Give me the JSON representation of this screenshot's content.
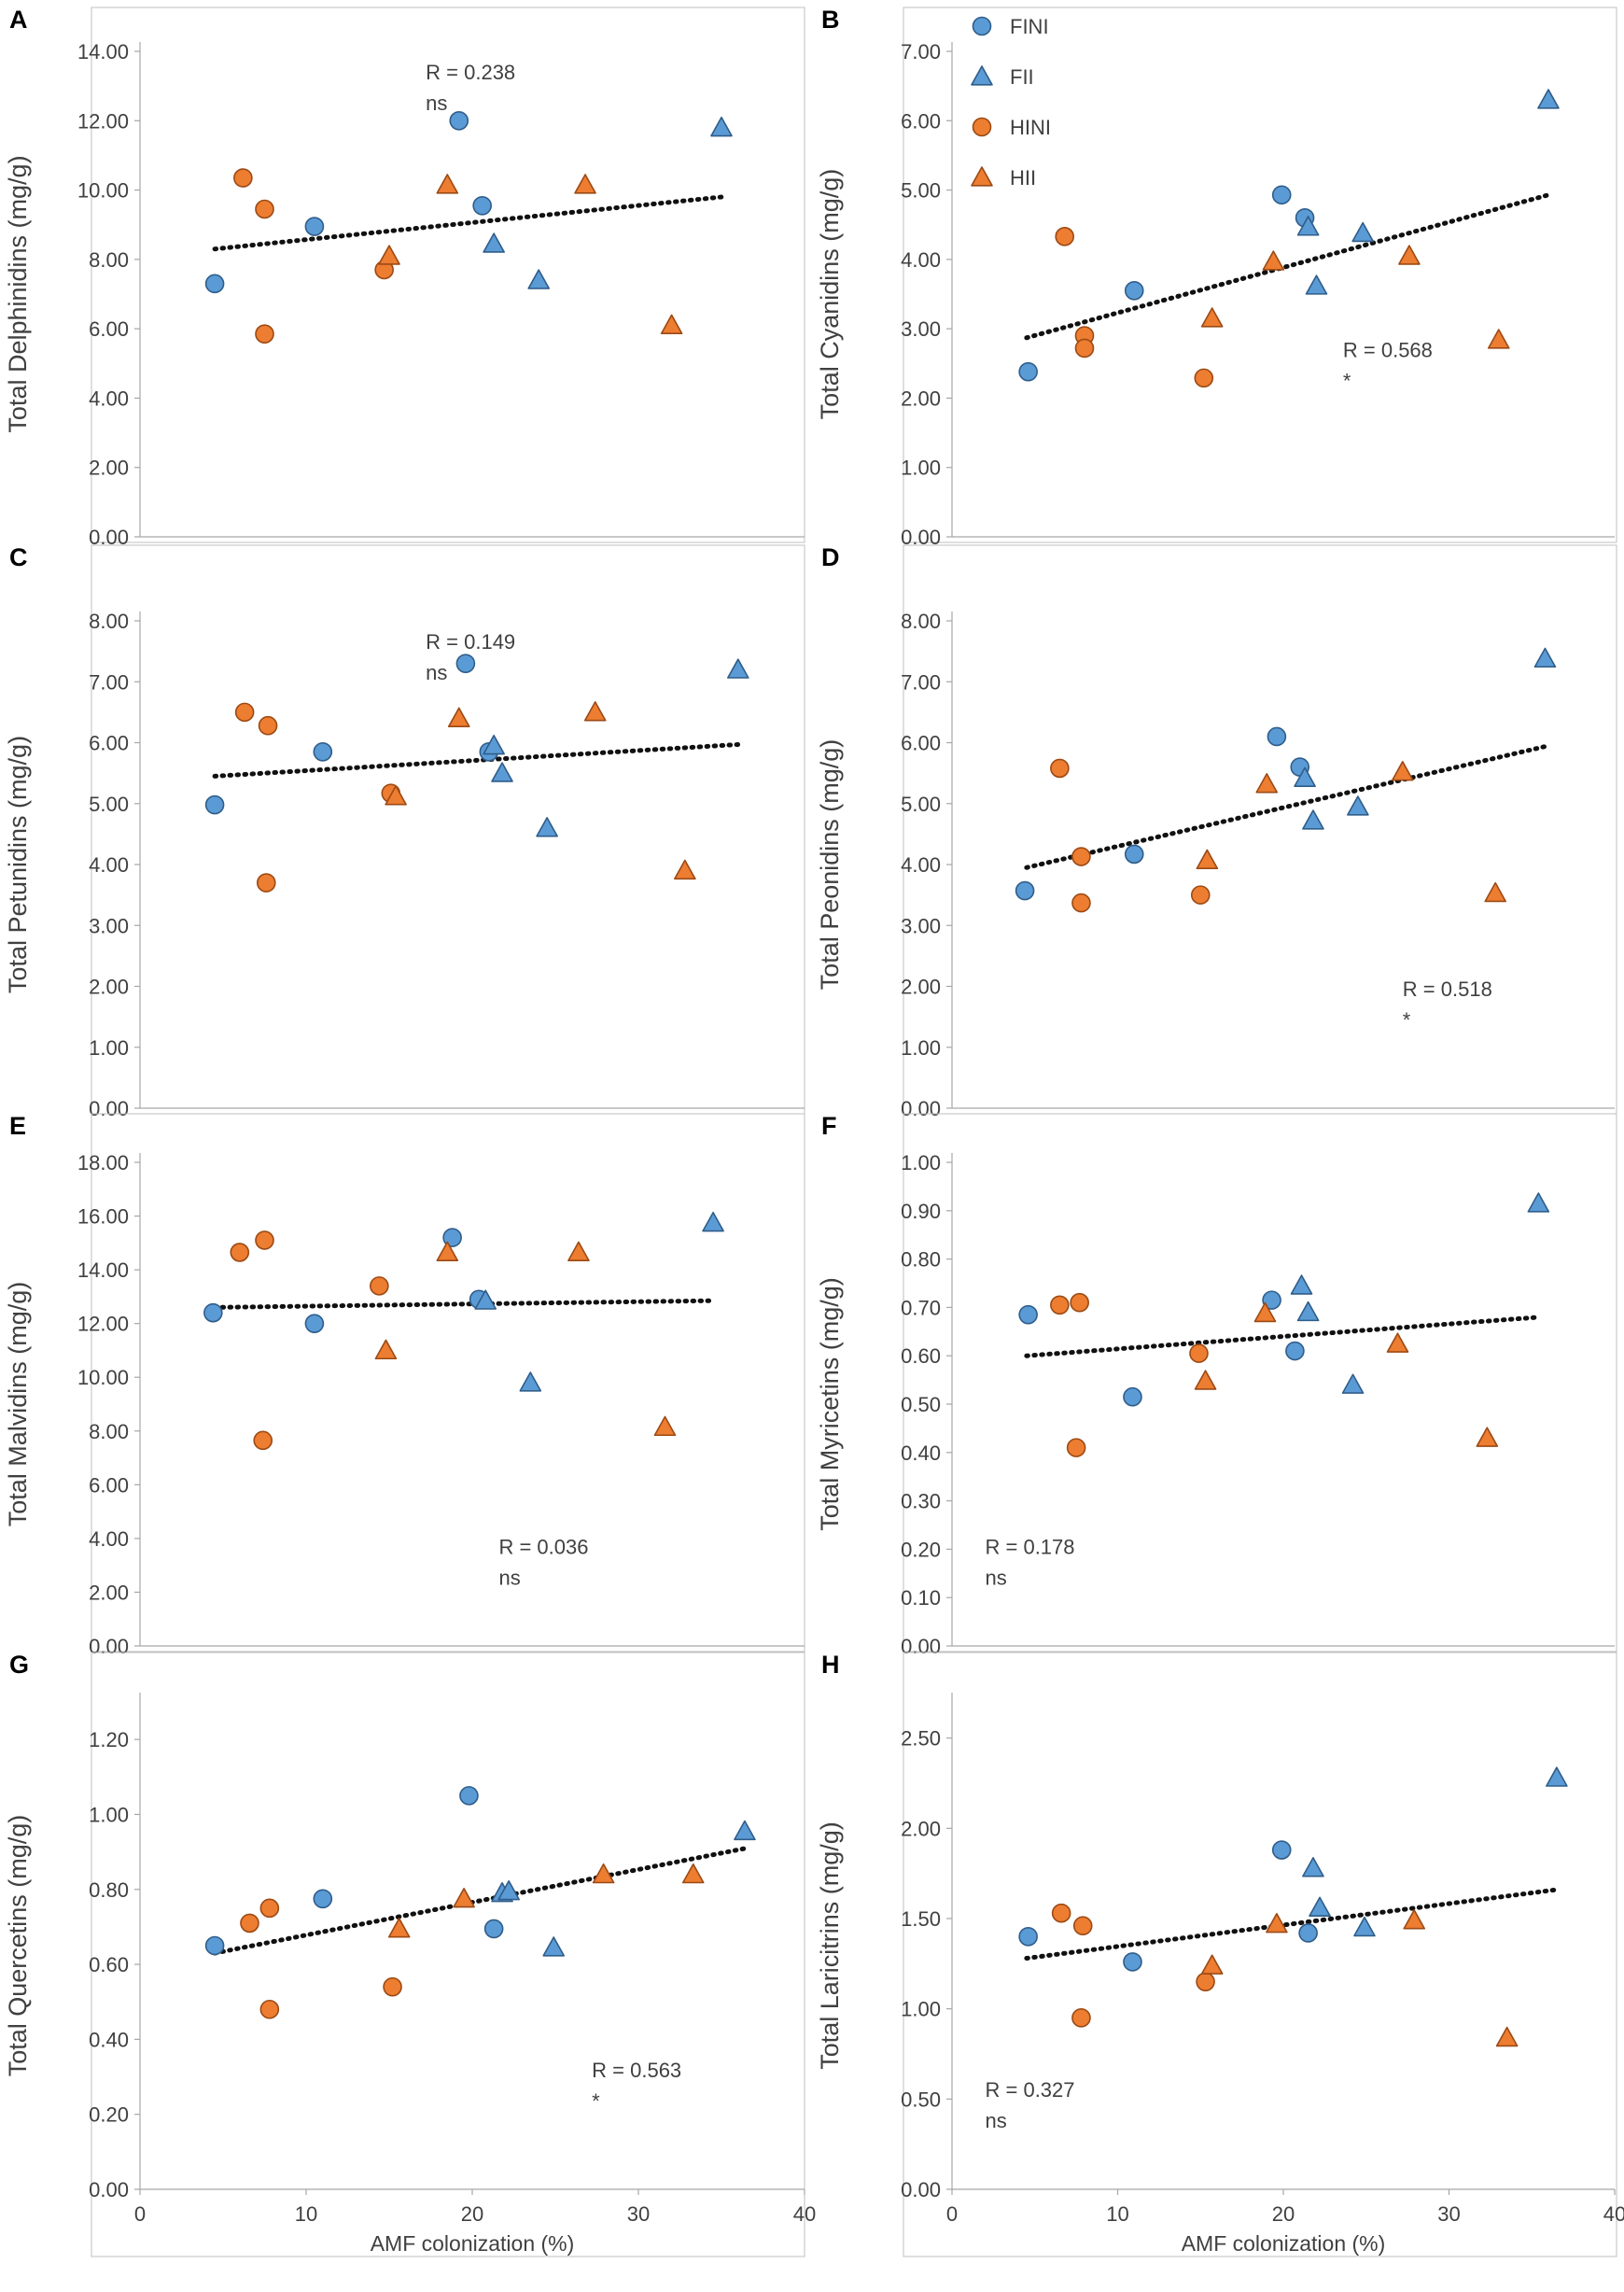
{
  "colors": {
    "FI": "#5b9bd5",
    "FIStroke": "#2f5d8a",
    "HI": "#ed7d31",
    "HIStroke": "#9c4a14"
  },
  "legend": [
    {
      "label": "FINI",
      "shape": "circle",
      "color": "FI"
    },
    {
      "label": "FII",
      "shape": "triangle",
      "color": "FI"
    },
    {
      "label": "HINI",
      "shape": "circle",
      "color": "HI"
    },
    {
      "label": "HII",
      "shape": "triangle",
      "color": "HI"
    }
  ],
  "chart_data": [
    {
      "panel": "A",
      "type": "scatter",
      "ylabel": "Total Delphinidins (mg/g)",
      "xlabel": "",
      "ylim": [
        0,
        14
      ],
      "ystep": 2,
      "xlim": [
        0,
        40
      ],
      "show_xticks": false,
      "decimals": 2,
      "R": "R = 0.238",
      "sig": "ns",
      "annot_pos": "top-center",
      "trend": {
        "x": [
          4.5,
          35
        ],
        "y": [
          8.3,
          9.8
        ]
      },
      "series": [
        {
          "name": "FINI",
          "points": [
            [
              4.5,
              7.3
            ],
            [
              10.5,
              8.95
            ],
            [
              19.2,
              12.0
            ],
            [
              20.6,
              9.55
            ]
          ]
        },
        {
          "name": "FII",
          "points": [
            [
              21.3,
              8.45
            ],
            [
              24.0,
              7.4
            ],
            [
              35.0,
              11.8
            ]
          ]
        },
        {
          "name": "HINI",
          "points": [
            [
              6.2,
              10.35
            ],
            [
              7.5,
              9.45
            ],
            [
              7.5,
              5.85
            ],
            [
              14.7,
              7.7
            ]
          ]
        },
        {
          "name": "HII",
          "points": [
            [
              15.0,
              8.1
            ],
            [
              18.5,
              10.15
            ],
            [
              26.8,
              10.15
            ],
            [
              32.0,
              6.1
            ]
          ]
        }
      ]
    },
    {
      "panel": "B",
      "type": "scatter",
      "ylabel": "Total Cyanidins (mg/g)",
      "xlabel": "",
      "ylim": [
        0,
        7
      ],
      "ystep": 1,
      "xlim": [
        0,
        40
      ],
      "show_xticks": false,
      "decimals": 2,
      "R": "R = 0.568",
      "sig": "*",
      "annot_pos": "mid-right",
      "trend": {
        "x": [
          4.5,
          36
        ],
        "y": [
          2.87,
          4.93
        ]
      },
      "series": [
        {
          "name": "FINI",
          "points": [
            [
              4.6,
              2.38
            ],
            [
              11.0,
              3.55
            ],
            [
              19.9,
              4.93
            ],
            [
              21.3,
              4.6
            ]
          ]
        },
        {
          "name": "FII",
          "points": [
            [
              21.5,
              4.47
            ],
            [
              22.0,
              3.62
            ],
            [
              24.8,
              4.38
            ],
            [
              36.0,
              6.3
            ]
          ]
        },
        {
          "name": "HINI",
          "points": [
            [
              6.8,
              4.33
            ],
            [
              8.0,
              2.9
            ],
            [
              8.0,
              2.72
            ],
            [
              15.2,
              2.29
            ]
          ]
        },
        {
          "name": "HII",
          "points": [
            [
              15.7,
              3.15
            ],
            [
              19.4,
              3.97
            ],
            [
              27.6,
              4.05
            ],
            [
              33.0,
              2.84
            ]
          ]
        }
      ]
    },
    {
      "panel": "C",
      "type": "scatter",
      "ylabel": "Total Petunidins (mg/g)",
      "xlabel": "",
      "ylim": [
        0,
        8
      ],
      "ystep": 1,
      "xlim": [
        0,
        40
      ],
      "show_xticks": false,
      "decimals": 2,
      "R": "R = 0.149",
      "sig": "ns",
      "annot_pos": "top-center",
      "trend": {
        "x": [
          4.5,
          36
        ],
        "y": [
          5.45,
          5.97
        ]
      },
      "series": [
        {
          "name": "FINI",
          "points": [
            [
              4.5,
              4.98
            ],
            [
              11.0,
              5.85
            ],
            [
              19.6,
              7.3
            ],
            [
              21.0,
              5.85
            ]
          ]
        },
        {
          "name": "FII",
          "points": [
            [
              21.3,
              5.95
            ],
            [
              21.8,
              5.5
            ],
            [
              24.5,
              4.6
            ],
            [
              36.0,
              7.2
            ]
          ]
        },
        {
          "name": "HINI",
          "points": [
            [
              6.3,
              6.5
            ],
            [
              7.7,
              6.28
            ],
            [
              7.6,
              3.7
            ],
            [
              15.1,
              5.17
            ]
          ]
        },
        {
          "name": "HII",
          "points": [
            [
              15.4,
              5.12
            ],
            [
              19.2,
              6.4
            ],
            [
              27.4,
              6.5
            ],
            [
              32.8,
              3.9
            ]
          ]
        }
      ]
    },
    {
      "panel": "D",
      "type": "scatter",
      "ylabel": "Total Peonidins (mg/g)",
      "xlabel": "",
      "ylim": [
        0,
        8
      ],
      "ystep": 1,
      "xlim": [
        0,
        40
      ],
      "show_xticks": false,
      "decimals": 2,
      "R": "R = 0.518",
      "sig": "*",
      "annot_pos": "bottom-right",
      "trend": {
        "x": [
          4.5,
          36
        ],
        "y": [
          3.95,
          5.95
        ]
      },
      "series": [
        {
          "name": "FINI",
          "points": [
            [
              4.4,
              3.57
            ],
            [
              11.0,
              4.17
            ],
            [
              19.6,
              6.1
            ],
            [
              21.0,
              5.6
            ]
          ]
        },
        {
          "name": "FII",
          "points": [
            [
              21.3,
              5.42
            ],
            [
              21.8,
              4.72
            ],
            [
              24.5,
              4.95
            ],
            [
              35.8,
              7.38
            ]
          ]
        },
        {
          "name": "HINI",
          "points": [
            [
              6.5,
              5.58
            ],
            [
              7.8,
              4.13
            ],
            [
              7.8,
              3.37
            ],
            [
              15.0,
              3.5
            ]
          ]
        },
        {
          "name": "HII",
          "points": [
            [
              15.4,
              4.07
            ],
            [
              19.0,
              5.32
            ],
            [
              27.2,
              5.52
            ],
            [
              32.8,
              3.53
            ]
          ]
        }
      ]
    },
    {
      "panel": "E",
      "type": "scatter",
      "ylabel": "Total Malvidins (mg/g)",
      "xlabel": "",
      "ylim": [
        0,
        18
      ],
      "ystep": 2,
      "xlim": [
        0,
        40
      ],
      "show_xticks": false,
      "decimals": 2,
      "R": "R = 0.036",
      "sig": "ns",
      "annot_pos": "bottom-center",
      "trend": {
        "x": [
          4.5,
          34.5
        ],
        "y": [
          12.6,
          12.85
        ]
      },
      "series": [
        {
          "name": "FINI",
          "points": [
            [
              4.4,
              12.4
            ],
            [
              10.5,
              12.0
            ],
            [
              18.8,
              15.2
            ],
            [
              20.4,
              12.9
            ]
          ]
        },
        {
          "name": "FII",
          "points": [
            [
              20.8,
              12.85
            ],
            [
              23.5,
              9.8
            ],
            [
              34.5,
              15.75
            ]
          ]
        },
        {
          "name": "HINI",
          "points": [
            [
              6.0,
              14.65
            ],
            [
              7.5,
              15.1
            ],
            [
              7.4,
              7.65
            ],
            [
              14.4,
              13.4
            ]
          ]
        },
        {
          "name": "HII",
          "points": [
            [
              14.8,
              11.0
            ],
            [
              18.5,
              14.65
            ],
            [
              26.4,
              14.65
            ],
            [
              31.6,
              8.15
            ]
          ]
        }
      ]
    },
    {
      "panel": "F",
      "type": "scatter",
      "ylabel": "Total Myricetins (mg/g)",
      "xlabel": "",
      "ylim": [
        0,
        1.0
      ],
      "ystep": 0.1,
      "xlim": [
        0,
        40
      ],
      "show_xticks": false,
      "decimals": 2,
      "R": "R = 0.178",
      "sig": "ns",
      "annot_pos": "bottom-left",
      "trend": {
        "x": [
          4.5,
          35.5
        ],
        "y": [
          0.6,
          0.68
        ]
      },
      "series": [
        {
          "name": "FINI",
          "points": [
            [
              4.6,
              0.685
            ],
            [
              10.9,
              0.515
            ],
            [
              19.3,
              0.715
            ],
            [
              20.7,
              0.61
            ]
          ]
        },
        {
          "name": "FII",
          "points": [
            [
              21.1,
              0.745
            ],
            [
              21.5,
              0.69
            ],
            [
              24.2,
              0.54
            ],
            [
              35.4,
              0.915
            ]
          ]
        },
        {
          "name": "HINI",
          "points": [
            [
              6.5,
              0.705
            ],
            [
              7.7,
              0.71
            ],
            [
              7.5,
              0.41
            ],
            [
              14.9,
              0.605
            ]
          ]
        },
        {
          "name": "HII",
          "points": [
            [
              15.3,
              0.548
            ],
            [
              18.9,
              0.688
            ],
            [
              26.9,
              0.625
            ],
            [
              32.3,
              0.43
            ]
          ]
        }
      ]
    },
    {
      "panel": "G",
      "type": "scatter",
      "ylabel": "Total Quercetins (mg/g)",
      "xlabel": "AMF colonization (%)",
      "ylim": [
        0,
        1.3
      ],
      "ystep": 0.2,
      "xlim": [
        0,
        40
      ],
      "show_xticks": true,
      "decimals": 2,
      "R": "R = 0.563",
      "sig": "*",
      "annot_pos": "bottom-right",
      "trend": {
        "x": [
          4.5,
          36.5
        ],
        "y": [
          0.63,
          0.91
        ]
      },
      "series": [
        {
          "name": "FINI",
          "points": [
            [
              4.5,
              0.65
            ],
            [
              11.0,
              0.775
            ],
            [
              19.8,
              1.05
            ],
            [
              21.3,
              0.695
            ]
          ]
        },
        {
          "name": "FII",
          "points": [
            [
              21.8,
              0.79
            ],
            [
              22.2,
              0.795
            ],
            [
              24.9,
              0.645
            ],
            [
              36.4,
              0.955
            ]
          ]
        },
        {
          "name": "HINI",
          "points": [
            [
              6.6,
              0.71
            ],
            [
              7.8,
              0.75
            ],
            [
              7.8,
              0.48
            ],
            [
              15.2,
              0.54
            ]
          ]
        },
        {
          "name": "HII",
          "points": [
            [
              15.6,
              0.695
            ],
            [
              19.5,
              0.775
            ],
            [
              27.9,
              0.84
            ],
            [
              33.3,
              0.84
            ]
          ]
        }
      ]
    },
    {
      "panel": "H",
      "type": "scatter",
      "ylabel": "Total Laricitrins (mg/g)",
      "xlabel": "AMF colonization (%)",
      "ylim": [
        0,
        2.7
      ],
      "ystep": 0.5,
      "xlim": [
        0,
        40
      ],
      "show_xticks": true,
      "decimals": 2,
      "R": "R = 0.327",
      "sig": "ns",
      "annot_pos": "bottom-left",
      "trend": {
        "x": [
          4.5,
          36.5
        ],
        "y": [
          1.28,
          1.66
        ]
      },
      "series": [
        {
          "name": "FINI",
          "points": [
            [
              4.6,
              1.4
            ],
            [
              10.9,
              1.26
            ],
            [
              19.9,
              1.88
            ],
            [
              21.5,
              1.42
            ]
          ]
        },
        {
          "name": "FII",
          "points": [
            [
              21.8,
              1.78
            ],
            [
              22.2,
              1.56
            ],
            [
              24.9,
              1.45
            ],
            [
              36.5,
              2.28
            ]
          ]
        },
        {
          "name": "HINI",
          "points": [
            [
              6.6,
              1.53
            ],
            [
              7.9,
              1.46
            ],
            [
              7.8,
              0.95
            ],
            [
              15.3,
              1.15
            ]
          ]
        },
        {
          "name": "HII",
          "points": [
            [
              15.7,
              1.24
            ],
            [
              19.6,
              1.47
            ],
            [
              27.9,
              1.49
            ],
            [
              33.5,
              0.84
            ]
          ]
        }
      ]
    }
  ]
}
